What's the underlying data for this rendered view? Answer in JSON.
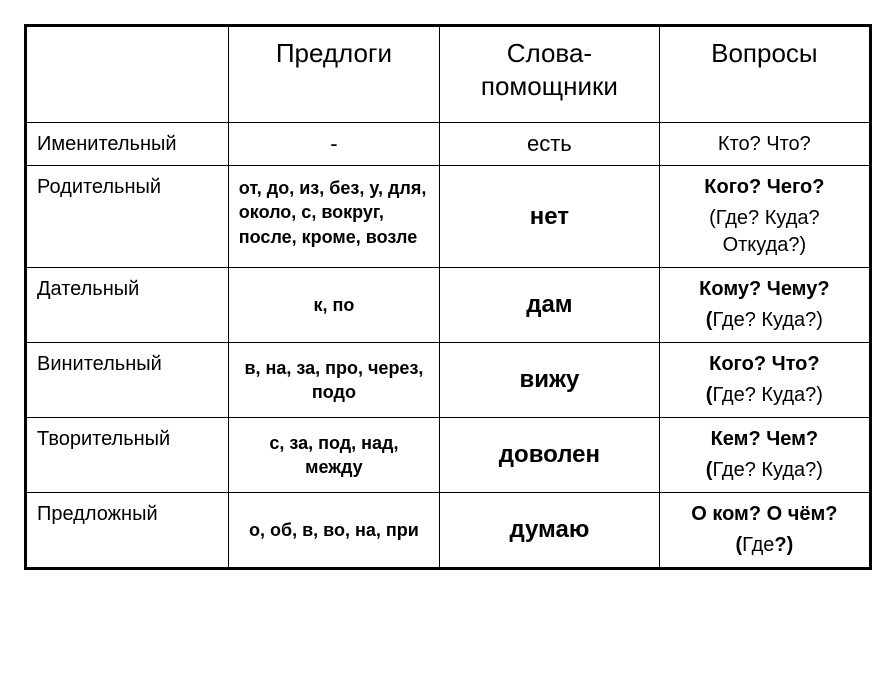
{
  "headers": {
    "empty": "",
    "prepositions": "Предлоги",
    "helperWords": "Слова-\nпомощники",
    "questions": "Вопросы"
  },
  "rows": [
    {
      "case": "Именительный",
      "prep": "-",
      "prepStyle": "dash",
      "word": "есть",
      "wordStyle": "small",
      "qMain": "Кто? Что?",
      "qSub": "",
      "qStyle": "small"
    },
    {
      "case": "Родительный",
      "prep": "от, до, из, без, у, для, около, с, вокруг, после, кроме, возле",
      "prepStyle": "left",
      "word": "нет",
      "wordStyle": "",
      "qMain": "Кого? Чего?",
      "qSubOpen": "(",
      "qSubBody": "Где? Куда? Откуда?)",
      "qStyle": ""
    },
    {
      "case": "Дательный",
      "prep": "к, по",
      "prepStyle": "",
      "word": "дам",
      "wordStyle": "",
      "qMain": "Кому? Чему?",
      "qSubOpen": "(",
      "qSubBody": "Где? Куда?)",
      "qStyle": ""
    },
    {
      "case": "Винительный",
      "prep": "в, на, за, про, через, подо",
      "prepStyle": "",
      "word": "вижу",
      "wordStyle": "",
      "qMain": "Кого? Что?",
      "qSubOpen": "(",
      "qSubBody": "Где? Куда?)",
      "qStyle": ""
    },
    {
      "case": "Творительный",
      "prep": "с, за, под, над, между",
      "prepStyle": "",
      "word": "доволен",
      "wordStyle": "",
      "qMain": "Кем? Чем?",
      "qSubOpen": "(",
      "qSubBody": "Где? Куда?)",
      "qStyle": ""
    },
    {
      "case": "Предложный",
      "prep": "о, об, в, во, на, при",
      "prepStyle": "",
      "word": "думаю",
      "wordStyle": "",
      "qMain": "О ком? О чём?",
      "qSubOpen": "(",
      "qSubBodyPre": "Где",
      "qSubBodyBold": "?)",
      "qStyle": ""
    }
  ]
}
